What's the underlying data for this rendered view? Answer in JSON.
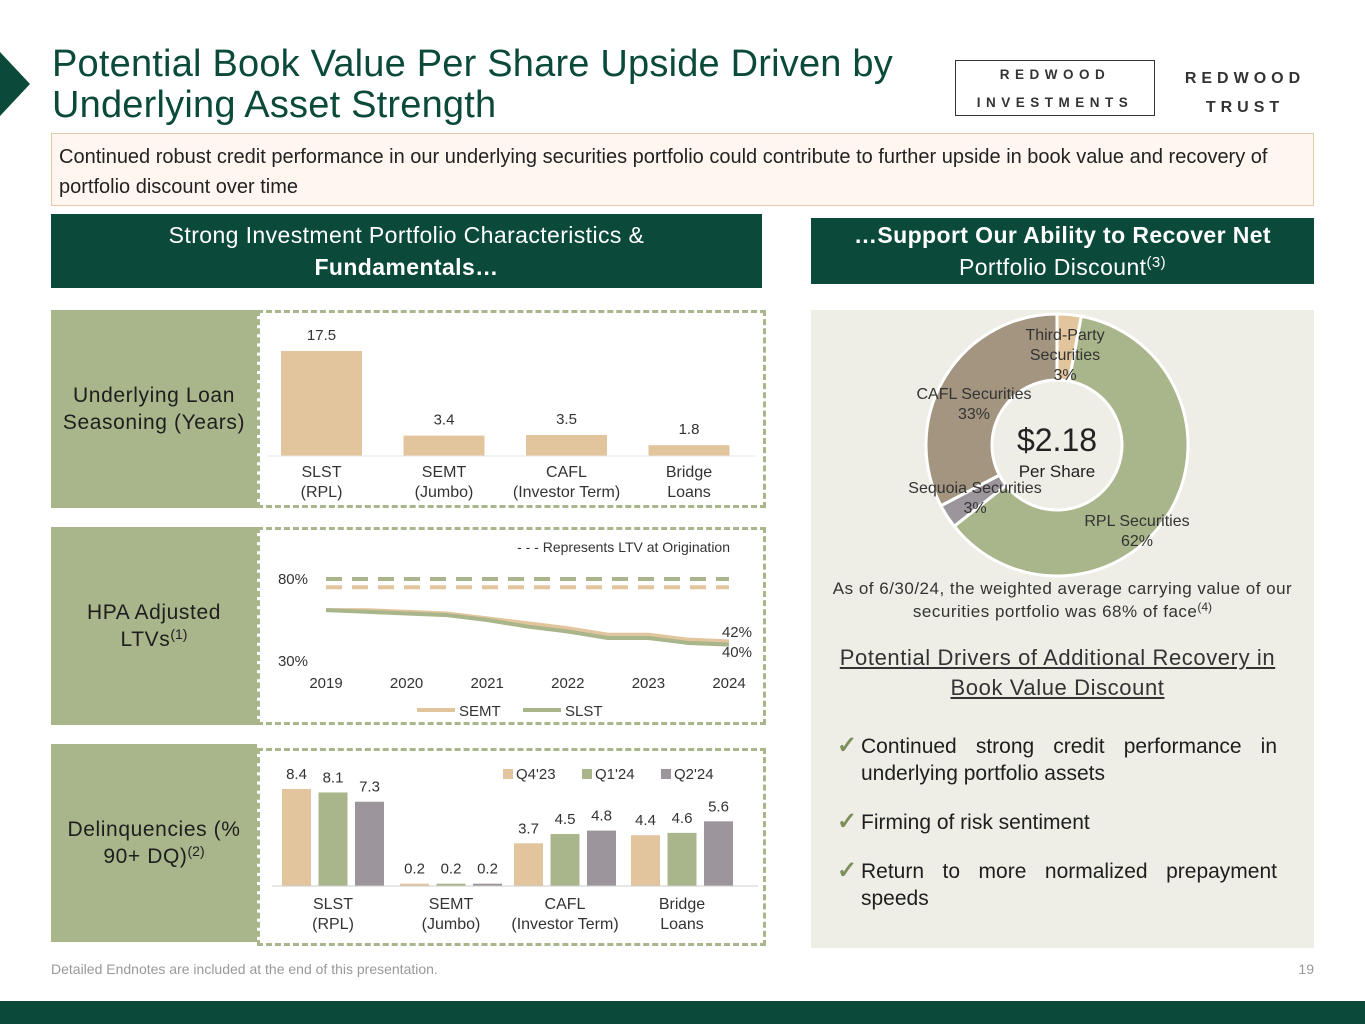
{
  "title": "Potential Book Value Per Share Upside Driven by Underlying Asset Strength",
  "logos": {
    "investments_line1": "REDWOOD",
    "investments_line2": "INVESTMENTS",
    "trust_line1": "REDWOOD",
    "trust_line2": "TRUST"
  },
  "intro": "Continued robust credit performance in our underlying securities portfolio could contribute to further upside in book value and recovery of portfolio discount over time",
  "left_header": {
    "line1": "Strong Investment Portfolio Characteristics &",
    "line2": "Fundamentals…"
  },
  "right_header": {
    "line1": "…Support Our Ability to Recover Net",
    "line2": "Portfolio Discount",
    "sup": "(3)"
  },
  "rows": {
    "seasoning": {
      "label": "Underlying Loan Seasoning (Years)"
    },
    "ltv": {
      "label": "HPA Adjusted LTVs",
      "sup": "(1)"
    },
    "dq": {
      "label": "Delinquencies (% 90+ DQ)",
      "sup": "(2)"
    }
  },
  "colors": {
    "green_dark": "#0b4a3b",
    "olive": "#a9b58a",
    "tan": "#e2c59c",
    "gray": "#9c959b",
    "brown": "#a39580"
  },
  "chart_data": [
    {
      "type": "bar",
      "categories": [
        "SLST\n(RPL)",
        "SEMT\n(Jumbo)",
        "CAFL\n(Investor Term)",
        "Bridge\nLoans"
      ],
      "values": [
        17.5,
        3.4,
        3.5,
        1.8
      ],
      "ylim": [
        0,
        17.5
      ]
    },
    {
      "type": "line",
      "x_ticks": [
        "2019",
        "2020",
        "2021",
        "2022",
        "2023",
        "2024"
      ],
      "y_ticks": [
        "80%",
        "30%"
      ],
      "ylim": [
        30,
        80
      ],
      "annotation": "- - - Represents LTV at Origination",
      "reference_lines": [
        {
          "name": "SLST",
          "value": 80
        },
        {
          "name": "SEMT",
          "value": 75
        }
      ],
      "series": [
        {
          "name": "SEMT",
          "x": [
            2019,
            2019.5,
            2020,
            2020.5,
            2021,
            2021.5,
            2022,
            2022.5,
            2023,
            2023.5,
            2024
          ],
          "values": [
            61,
            61,
            60,
            59,
            56,
            53,
            50,
            46,
            46,
            43,
            42
          ],
          "end_label": "42%"
        },
        {
          "name": "SLST",
          "x": [
            2019,
            2019.5,
            2020,
            2020.5,
            2021,
            2021.5,
            2022,
            2022.5,
            2023,
            2023.5,
            2024
          ],
          "values": [
            61,
            60,
            59,
            58,
            55,
            51,
            48,
            44,
            44,
            41,
            40
          ],
          "end_label": "40%"
        }
      ],
      "legend": "bottom"
    },
    {
      "type": "bar",
      "categories": [
        "SLST\n(RPL)",
        "SEMT\n(Jumbo)",
        "CAFL\n(Investor Term)",
        "Bridge\nLoans"
      ],
      "series": [
        {
          "name": "Q4'23",
          "values": [
            8.4,
            0.2,
            3.7,
            4.4
          ]
        },
        {
          "name": "Q1'24",
          "values": [
            8.1,
            0.2,
            4.5,
            4.6
          ]
        },
        {
          "name": "Q2'24",
          "values": [
            7.3,
            0.2,
            4.8,
            5.6
          ]
        }
      ],
      "legend": "top-right",
      "ylim": [
        0,
        8.4
      ]
    },
    {
      "type": "pie",
      "center_value": "$2.18",
      "center_label": "Per Share",
      "slices": [
        {
          "label": "Third-Party\nSecurities",
          "value": 3,
          "pct": "3%"
        },
        {
          "label": "RPL Securities",
          "value": 62,
          "pct": "62%"
        },
        {
          "label": "Sequoia Securities",
          "value": 3,
          "pct": "3%"
        },
        {
          "label": "CAFL Securities",
          "value": 33,
          "pct": "33%"
        }
      ]
    }
  ],
  "carry_note": "As of 6/30/24, the weighted average carrying value of our securities portfolio was 68% of face",
  "carry_sup": "(4)",
  "drivers_title": "Potential Drivers of Additional Recovery in Book Value Discount",
  "drivers": [
    "Continued strong credit performance in underlying portfolio assets",
    "Firming of risk sentiment",
    "Return to more normalized prepayment speeds"
  ],
  "check_icon": "✓",
  "footnote": "Detailed Endnotes are included at the end of this presentation.",
  "page_number": "19"
}
